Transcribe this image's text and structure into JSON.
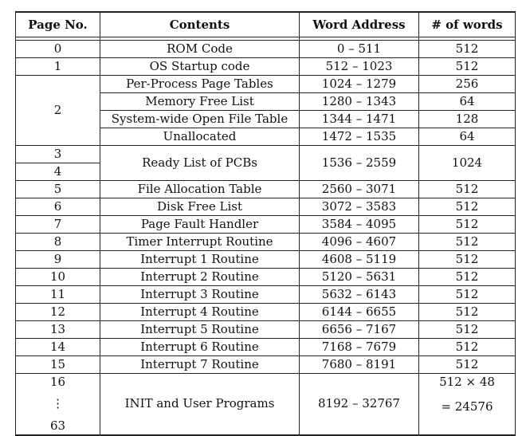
{
  "headers": {
    "page": "Page No.",
    "contents": "Contents",
    "address": "Word Address",
    "words": "# of words"
  },
  "rows": {
    "r0": {
      "page": "0",
      "contents": "ROM Code",
      "address": "0 – 511",
      "words": "512"
    },
    "r1": {
      "page": "1",
      "contents": "OS Startup code",
      "address": "512 – 1023",
      "words": "512"
    },
    "r2a": {
      "page": "2",
      "contents": "Per-Process Page Tables",
      "address": "1024 – 1279",
      "words": "256"
    },
    "r2b": {
      "contents": "Memory Free List",
      "address": "1280 – 1343",
      "words": "64"
    },
    "r2c": {
      "contents": "System-wide Open File Table",
      "address": "1344 – 1471",
      "words": "128"
    },
    "r2d": {
      "contents": "Unallocated",
      "address": "1472 – 1535",
      "words": "64"
    },
    "r34": {
      "page_a": "3",
      "page_b": "4",
      "contents": "Ready List of PCBs",
      "address": "1536 – 2559",
      "words": "1024"
    },
    "r5": {
      "page": "5",
      "contents": "File Allocation Table",
      "address": "2560 – 3071",
      "words": "512"
    },
    "r6": {
      "page": "6",
      "contents": "Disk Free List",
      "address": "3072 – 3583",
      "words": "512"
    },
    "r7": {
      "page": "7",
      "contents": "Page Fault Handler",
      "address": "3584 – 4095",
      "words": "512"
    },
    "r8": {
      "page": "8",
      "contents": "Timer Interrupt Routine",
      "address": "4096 – 4607",
      "words": "512"
    },
    "r9": {
      "page": "9",
      "contents": "Interrupt 1 Routine",
      "address": "4608 – 5119",
      "words": "512"
    },
    "r10": {
      "page": "10",
      "contents": "Interrupt 2 Routine",
      "address": "5120 – 5631",
      "words": "512"
    },
    "r11": {
      "page": "11",
      "contents": "Interrupt 3 Routine",
      "address": "5632 – 6143",
      "words": "512"
    },
    "r12": {
      "page": "12",
      "contents": "Interrupt 4 Routine",
      "address": "6144 – 6655",
      "words": "512"
    },
    "r13": {
      "page": "13",
      "contents": "Interrupt 5 Routine",
      "address": "6656 – 7167",
      "words": "512"
    },
    "r14": {
      "page": "14",
      "contents": "Interrupt 6 Routine",
      "address": "7168 – 7679",
      "words": "512"
    },
    "r15": {
      "page": "15",
      "contents": "Interrupt 7 Routine",
      "address": "7680 – 8191",
      "words": "512"
    },
    "rlast": {
      "page_start": "16",
      "page_dots": "⋮",
      "page_end": "63",
      "contents": "INIT and User Programs",
      "address": "8192 – 32767",
      "words_line1": "512 × 48",
      "words_line2": "= 24576"
    }
  }
}
